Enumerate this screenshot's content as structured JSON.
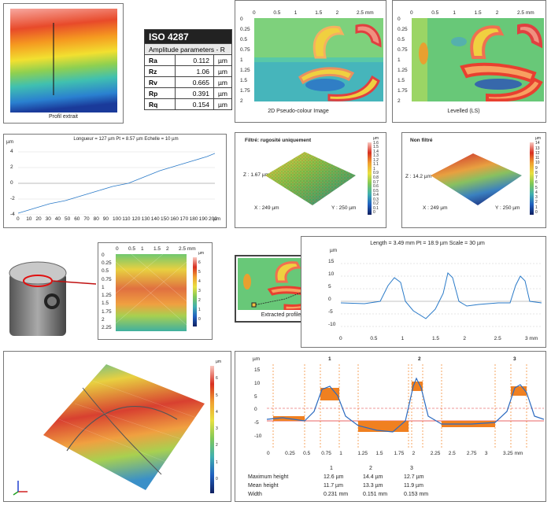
{
  "profil": {
    "caption": "Profil extrait"
  },
  "iso_table": {
    "title": "ISO 4287",
    "subtitle": "Amplitude parameters - R",
    "rows": [
      {
        "name": "Ra",
        "value": "0.112",
        "unit": "µm"
      },
      {
        "name": "Rz",
        "value": "1.06",
        "unit": "µm"
      },
      {
        "name": "Rv",
        "value": "0.665",
        "unit": "µm"
      },
      {
        "name": "Rp",
        "value": "0.391",
        "unit": "µm"
      },
      {
        "name": "Rq",
        "value": "0.154",
        "unit": "µm"
      }
    ]
  },
  "pseudo2d": {
    "caption": "2D Pseudo-colour Image",
    "x_ticks": [
      "0",
      "0.5",
      "1",
      "1.5",
      "2",
      "2.5 mm"
    ],
    "y_ticks": [
      "0",
      "0.25",
      "0.5",
      "0.75",
      "1",
      "1.25",
      "1.5",
      "1.75",
      "2"
    ],
    "y_unit": "mm"
  },
  "levelled": {
    "caption": "Levelled (LS)",
    "x_ticks": [
      "0",
      "0.5",
      "1",
      "1.5",
      "2",
      "2.5 mm"
    ],
    "y_ticks": [
      "0",
      "0.25",
      "0.5",
      "0.75",
      "1",
      "1.25",
      "1.5",
      "1.75",
      "2"
    ],
    "y_unit": "mm"
  },
  "profile_chart": {
    "header": "Longueur = 127 µm  Pt = 8.57 µm  Echelle = 10 µm",
    "y_unit": "µm",
    "y_ticks": [
      "4",
      "2",
      "0",
      "-2",
      "-4"
    ],
    "x_ticks": [
      "0",
      "10",
      "20",
      "30",
      "40",
      "50",
      "60",
      "70",
      "80",
      "90",
      "100",
      "110",
      "120",
      "130",
      "140",
      "150",
      "160",
      "170",
      "180",
      "190",
      "200"
    ],
    "x_unit": "µm"
  },
  "filtre": {
    "title": "Filtré: rugosité uniquement",
    "z_label": "Z : 1.67 µm",
    "x_label": "X : 249 µm",
    "y_label": "Y : 250 µm",
    "scale": [
      "µm",
      "1.6",
      "1.5",
      "1.4",
      "1.3",
      "1.2",
      "1.1",
      "1",
      "0.9",
      "0.8",
      "0.7",
      "0.6",
      "0.5",
      "0.4",
      "0.3",
      "0.2",
      "0.1",
      "0"
    ]
  },
  "nonfiltre": {
    "title": "Non filtré",
    "z_label": "Z : 14.2 µm",
    "x_label": "X : 249 µm",
    "y_label": "Y : 250 µm",
    "scale": [
      "µm",
      "14",
      "13",
      "12",
      "11",
      "10",
      "9",
      "8",
      "7",
      "6",
      "5",
      "4",
      "3",
      "2",
      "1",
      "0"
    ]
  },
  "piston_map": {
    "x_ticks": [
      "0",
      "0.5",
      "1",
      "1.5",
      "2",
      "2.5 mm"
    ],
    "y_ticks": [
      "0",
      "0.25",
      "0.5",
      "0.75",
      "1",
      "1.25",
      "1.5",
      "1.75",
      "2",
      "2.25"
    ],
    "y_unit": "mm",
    "scale": [
      "µm",
      "6",
      "5",
      "4",
      "3",
      "2",
      "1",
      "0"
    ]
  },
  "extracted": {
    "caption": "Extracted profile"
  },
  "length_chart": {
    "header": "Length = 3.49 mm  Pt = 18.9 µm  Scale = 30 µm",
    "y_unit": "µm",
    "y_ticks": [
      "15",
      "10",
      "5",
      "0",
      "-5",
      "-10"
    ],
    "x_ticks": [
      "0",
      "0.5",
      "1",
      "1.5",
      "2",
      "2.5",
      "3 mm"
    ]
  },
  "view3d": {
    "scale": [
      "µm",
      "6",
      "5",
      "4",
      "3",
      "2",
      "1",
      "0"
    ]
  },
  "peaks_chart": {
    "y_unit": "µm",
    "peak_labels": [
      "1",
      "2",
      "3"
    ],
    "y_ticks": [
      "15",
      "10",
      "5",
      "0",
      "-5",
      "-10"
    ],
    "x_ticks": [
      "0",
      "0.25",
      "0.5",
      "0.75",
      "1",
      "1.25",
      "1.5",
      "1.75",
      "2",
      "2.25",
      "2.5",
      "2.75",
      "3",
      "3.25 mm"
    ],
    "table": {
      "headers": [
        "",
        "1",
        "2",
        "3"
      ],
      "rows": [
        {
          "label": "Maximum height",
          "v": [
            "12.6 µm",
            "14.4 µm",
            "12.7 µm"
          ]
        },
        {
          "label": "Mean height",
          "v": [
            "11.7 µm",
            "13.3 µm",
            "11.9 µm"
          ]
        },
        {
          "label": "Width",
          "v": [
            "0.231 mm",
            "0.151 mm",
            "0.153 mm"
          ]
        }
      ]
    }
  }
}
